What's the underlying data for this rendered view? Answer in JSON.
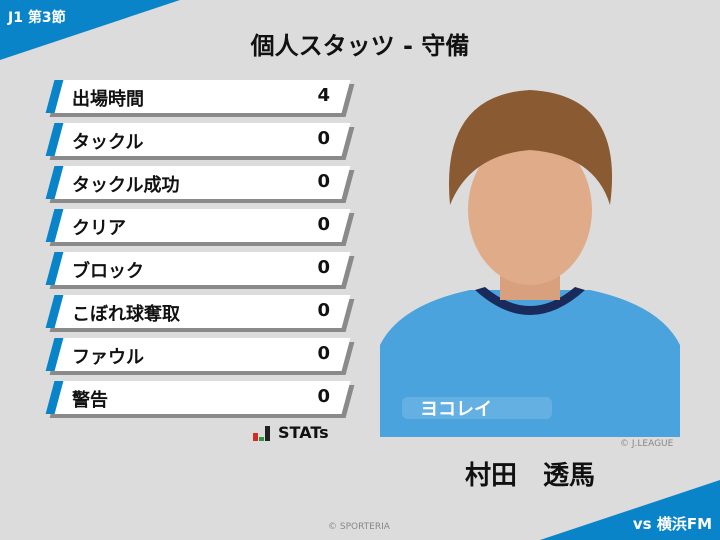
{
  "header": {
    "round": "J1 第3節",
    "title": "個人スタッツ - 守備",
    "opponent": "vs 横浜FM"
  },
  "stats": [
    {
      "label": "出場時間",
      "value": "4"
    },
    {
      "label": "タックル",
      "value": "0"
    },
    {
      "label": "タックル成功",
      "value": "0"
    },
    {
      "label": "クリア",
      "value": "0"
    },
    {
      "label": "ブロック",
      "value": "0"
    },
    {
      "label": "こぼれ球奪取",
      "value": "0"
    },
    {
      "label": "ファウル",
      "value": "0"
    },
    {
      "label": "警告",
      "value": "0"
    }
  ],
  "logo": {
    "text": "STATs"
  },
  "player": {
    "name": "村田　透馬",
    "photo_credit": "© J.LEAGUE",
    "sponsor_text": "ヨコレイ"
  },
  "footer": {
    "credit": "© SPORTERIA"
  },
  "colors": {
    "accent": "#0a84c8",
    "background": "#dcdcdc"
  }
}
